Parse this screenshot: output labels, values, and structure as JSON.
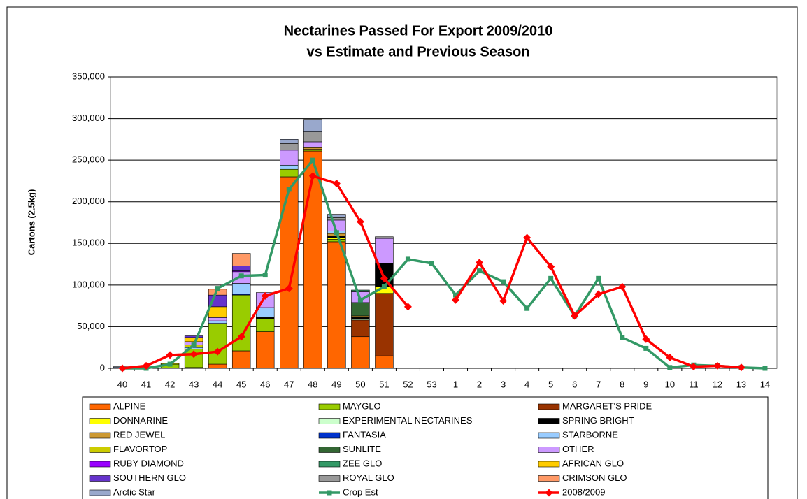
{
  "chart_data": {
    "type": "bar",
    "stacked": true,
    "title": "Nectarines Passed For Export 2009/2010",
    "subtitle": "vs Estimate and Previous Season",
    "y_label": "Cartons (2.5kg)",
    "categories": [
      "40",
      "41",
      "42",
      "43",
      "44",
      "45",
      "46",
      "47",
      "48",
      "49",
      "50",
      "51",
      "52",
      "53",
      "1",
      "2",
      "3",
      "4",
      "5",
      "6",
      "7",
      "8",
      "9",
      "10",
      "11",
      "12",
      "13",
      "14"
    ],
    "ylim": [
      0,
      350000
    ],
    "yticks": [
      0,
      {
        "value": 50000,
        "label": "50,000"
      },
      {
        "value": 100000,
        "label": "100,000"
      },
      {
        "value": 150000,
        "label": "150,000"
      },
      {
        "value": 200000,
        "label": "200,000"
      },
      {
        "value": 250000,
        "label": "250,000"
      },
      {
        "value": 300000,
        "label": "300,000"
      },
      {
        "value": 350000,
        "label": "350,000"
      }
    ],
    "grid": true,
    "series": [
      {
        "name": "ALPINE",
        "color": "#ff6600",
        "values": [
          null,
          null,
          null,
          1000,
          5000,
          21000,
          44000,
          230000,
          261000,
          152000,
          38000,
          15000,
          null,
          null,
          null,
          null,
          null,
          null,
          null,
          null,
          null,
          null,
          null,
          null,
          null,
          null,
          null,
          null
        ]
      },
      {
        "name": "MAYGLO",
        "color": "#99cc00",
        "values": [
          1000,
          1000,
          5000,
          22000,
          49000,
          67000,
          15000,
          9000,
          2000,
          3000,
          null,
          null,
          null,
          null,
          null,
          null,
          null,
          null,
          null,
          null,
          null,
          null,
          null,
          null,
          null,
          null,
          null,
          null
        ]
      },
      {
        "name": "MARGARET'S PRIDE",
        "color": "#993300",
        "values": [
          null,
          null,
          null,
          null,
          null,
          null,
          null,
          null,
          null,
          null,
          20000,
          75000,
          null,
          null,
          null,
          null,
          null,
          null,
          null,
          null,
          null,
          null,
          null,
          null,
          null,
          null,
          null,
          null
        ]
      },
      {
        "name": "DONNARINE",
        "color": "#ffff00",
        "values": [
          null,
          null,
          null,
          null,
          null,
          null,
          null,
          null,
          null,
          2000,
          null,
          8000,
          null,
          null,
          null,
          null,
          null,
          null,
          null,
          null,
          null,
          null,
          null,
          null,
          null,
          null,
          null,
          null
        ]
      },
      {
        "name": "EXPERIMENTAL NECTARINES",
        "color": "#ccffcc",
        "values": [
          null,
          null,
          null,
          null,
          null,
          null,
          null,
          null,
          null,
          null,
          1000,
          null,
          null,
          null,
          null,
          null,
          null,
          null,
          null,
          null,
          null,
          null,
          null,
          null,
          null,
          null,
          null,
          null
        ]
      },
      {
        "name": "SPRING BRIGHT",
        "color": "#000000",
        "values": [
          null,
          null,
          null,
          null,
          null,
          null,
          2000,
          null,
          null,
          2000,
          2000,
          28000,
          null,
          null,
          null,
          null,
          null,
          null,
          null,
          null,
          null,
          null,
          null,
          null,
          null,
          null,
          null,
          null
        ]
      },
      {
        "name": "RED JEWEL",
        "color": "#cc9933",
        "values": [
          null,
          null,
          null,
          null,
          null,
          null,
          null,
          null,
          2000,
          3000,
          2000,
          null,
          null,
          null,
          null,
          null,
          null,
          null,
          null,
          null,
          null,
          null,
          null,
          null,
          null,
          null,
          null,
          null
        ]
      },
      {
        "name": "FANTASIA",
        "color": "#0033cc",
        "values": [
          null,
          null,
          null,
          null,
          null,
          1000,
          null,
          null,
          null,
          null,
          null,
          null,
          null,
          null,
          null,
          null,
          null,
          null,
          null,
          null,
          null,
          null,
          null,
          null,
          null,
          null,
          null,
          null
        ]
      },
      {
        "name": "STARBORNE",
        "color": "#99ccff",
        "values": [
          null,
          null,
          null,
          2000,
          3000,
          13000,
          12000,
          5000,
          null,
          3000,
          null,
          null,
          null,
          null,
          null,
          null,
          null,
          null,
          null,
          null,
          null,
          null,
          null,
          null,
          null,
          null,
          null,
          null
        ]
      },
      {
        "name": "FLAVORTOP",
        "color": "#cccc00",
        "values": [
          null,
          null,
          1000,
          3000,
          null,
          null,
          null,
          null,
          null,
          null,
          null,
          null,
          null,
          null,
          null,
          null,
          null,
          null,
          null,
          null,
          null,
          null,
          null,
          null,
          null,
          null,
          null,
          null
        ]
      },
      {
        "name": "SUNLITE",
        "color": "#336633",
        "values": [
          null,
          null,
          null,
          null,
          null,
          null,
          null,
          null,
          null,
          null,
          16000,
          null,
          null,
          null,
          null,
          null,
          null,
          null,
          null,
          null,
          null,
          null,
          null,
          null,
          null,
          null,
          null,
          null
        ]
      },
      {
        "name": "OTHER",
        "color": "#cc99ff",
        "values": [
          null,
          null,
          null,
          4000,
          4000,
          14000,
          18000,
          18000,
          7000,
          13000,
          13000,
          30000,
          null,
          null,
          null,
          null,
          null,
          null,
          null,
          null,
          null,
          null,
          null,
          null,
          null,
          null,
          null,
          null
        ]
      },
      {
        "name": "RUBY DIAMOND",
        "color": "#9900ff",
        "values": [
          null,
          null,
          null,
          null,
          null,
          1000,
          null,
          null,
          null,
          null,
          null,
          null,
          null,
          null,
          null,
          null,
          null,
          null,
          null,
          null,
          null,
          null,
          null,
          null,
          null,
          null,
          null,
          null
        ]
      },
      {
        "name": "ZEE GLO",
        "color": "#339966",
        "values": [
          null,
          null,
          null,
          null,
          null,
          null,
          null,
          null,
          null,
          null,
          2000,
          null,
          null,
          null,
          null,
          null,
          null,
          null,
          null,
          null,
          null,
          null,
          null,
          null,
          null,
          null,
          null,
          null
        ]
      },
      {
        "name": "AFRICAN GLO",
        "color": "#ffcc00",
        "values": [
          null,
          null,
          null,
          5000,
          13000,
          null,
          null,
          null,
          null,
          null,
          null,
          null,
          null,
          null,
          null,
          null,
          null,
          null,
          null,
          null,
          null,
          null,
          null,
          null,
          null,
          null,
          null,
          null
        ]
      },
      {
        "name": "SOUTHERN GLO",
        "color": "#6633cc",
        "values": [
          null,
          null,
          null,
          2000,
          14000,
          6000,
          null,
          null,
          null,
          null,
          null,
          null,
          null,
          null,
          null,
          null,
          null,
          null,
          null,
          null,
          null,
          null,
          null,
          null,
          null,
          null,
          null,
          null
        ]
      },
      {
        "name": "ROYAL GLO",
        "color": "#999999",
        "values": [
          null,
          null,
          null,
          null,
          null,
          null,
          null,
          8000,
          12000,
          3000,
          null,
          2000,
          null,
          null,
          null,
          null,
          null,
          null,
          null,
          null,
          null,
          null,
          null,
          null,
          null,
          null,
          null,
          null
        ]
      },
      {
        "name": "CRIMSON GLO",
        "color": "#ff9966",
        "values": [
          null,
          null,
          null,
          null,
          7000,
          15000,
          null,
          null,
          null,
          null,
          null,
          null,
          null,
          null,
          null,
          null,
          null,
          null,
          null,
          null,
          null,
          null,
          null,
          null,
          null,
          null,
          null,
          null
        ]
      },
      {
        "name": "Arctic Star",
        "color": "#99a8cc",
        "values": [
          1000,
          null,
          null,
          null,
          null,
          null,
          null,
          5000,
          15000,
          4000,
          null,
          null,
          null,
          null,
          null,
          null,
          null,
          null,
          null,
          null,
          null,
          null,
          null,
          null,
          null,
          null,
          null,
          null
        ]
      }
    ],
    "lines": [
      {
        "name": "Crop Est",
        "color": "#339966",
        "marker": "square",
        "values": [
          0,
          0,
          5000,
          28000,
          96000,
          111000,
          112000,
          215000,
          250000,
          163000,
          82000,
          98000,
          131000,
          126000,
          88000,
          117000,
          104000,
          72000,
          108000,
          63000,
          108000,
          37000,
          24000,
          1000,
          4000,
          3000,
          1000,
          0
        ]
      },
      {
        "name": "2008/2009",
        "color": "#ff0000",
        "marker": "diamond",
        "values": [
          0,
          3000,
          16000,
          17000,
          20000,
          38000,
          87000,
          96000,
          231000,
          222000,
          176000,
          108000,
          74000,
          null,
          82000,
          127000,
          81000,
          157000,
          122000,
          63000,
          89000,
          98000,
          35000,
          13000,
          2000,
          3000,
          1000,
          null
        ]
      }
    ]
  }
}
